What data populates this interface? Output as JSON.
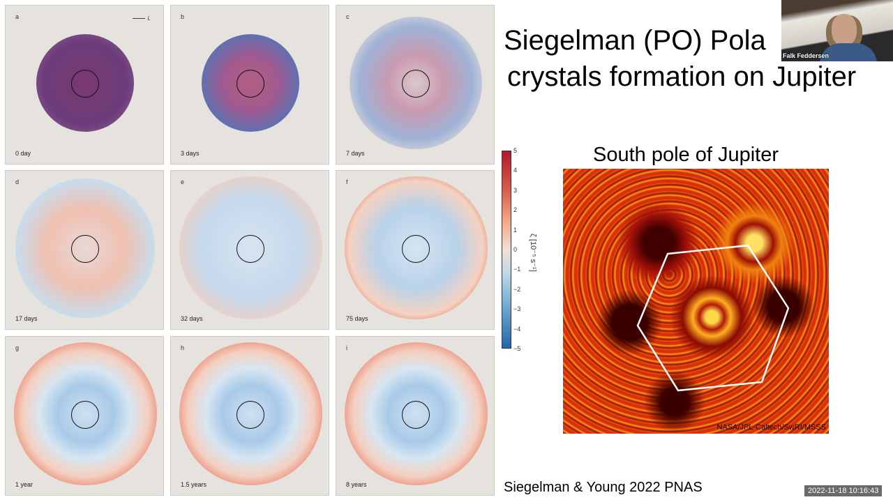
{
  "slide": {
    "title_line1": "Siegelman (PO) Pola",
    "title_line2": "crystals formation on Jupiter",
    "image_title": "South pole of Jupiter",
    "image_credit": "NASA/JPL-Caltech/SwRI/MSSS",
    "reference": "Siegelman & Young 2022 PNAS"
  },
  "figure": {
    "scale_label": "L",
    "panels": [
      {
        "label": "a",
        "time": "0 day"
      },
      {
        "label": "b",
        "time": "3 days"
      },
      {
        "label": "c",
        "time": "7 days"
      },
      {
        "label": "d",
        "time": "17 days"
      },
      {
        "label": "e",
        "time": "32 days"
      },
      {
        "label": "f",
        "time": "75 days"
      },
      {
        "label": "g",
        "time": "1 year"
      },
      {
        "label": "h",
        "time": "1.5 years"
      },
      {
        "label": "i",
        "time": "8 years"
      }
    ],
    "colorbar": {
      "ticks": [
        "5",
        "4",
        "3",
        "2",
        "1",
        "0",
        "−1",
        "−2",
        "−3",
        "−4",
        "−5"
      ],
      "label": "ζ [10⁻⁵ s⁻¹]",
      "range": [
        -5,
        5
      ]
    }
  },
  "video": {
    "participant_name": "Falk Feddersen",
    "timestamp": "2022-11-18  10:16:43"
  }
}
